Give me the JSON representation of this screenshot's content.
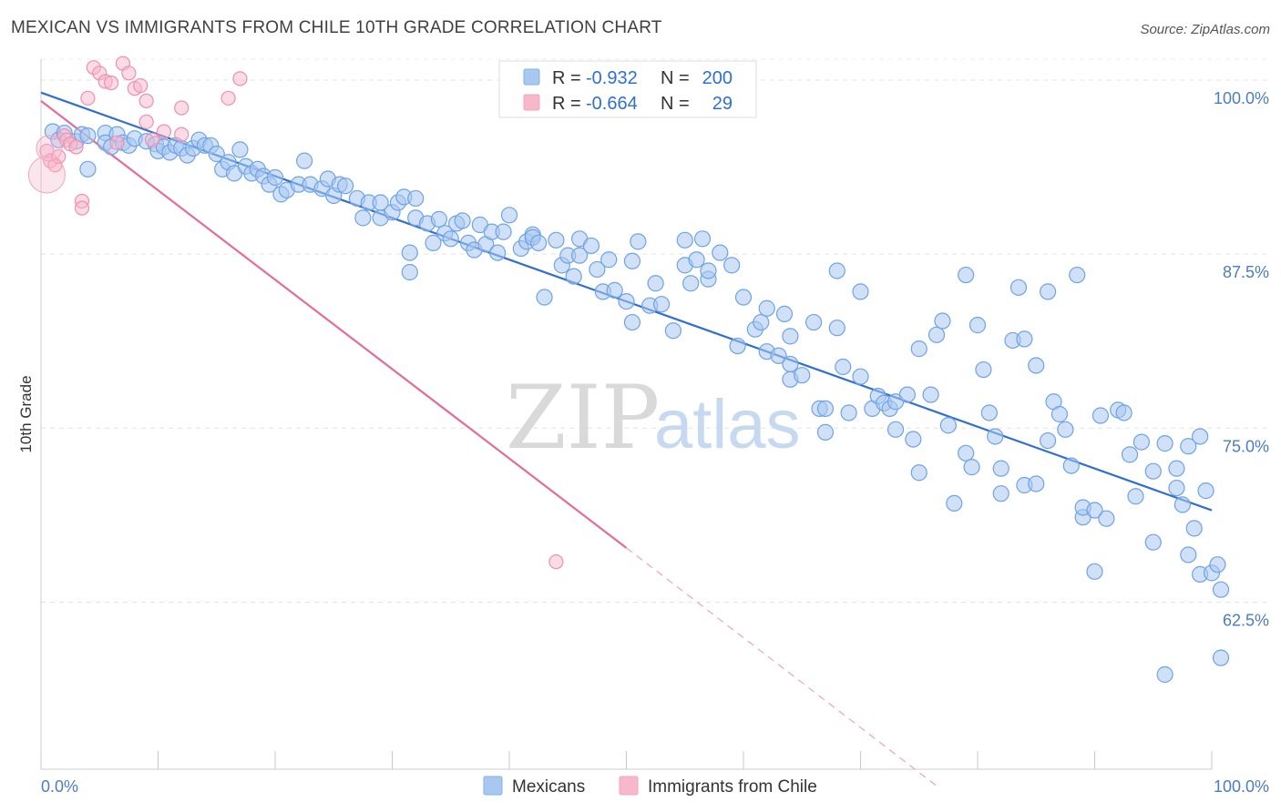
{
  "header": {
    "title": "MEXICAN VS IMMIGRANTS FROM CHILE 10TH GRADE CORRELATION CHART",
    "source": "Source: ZipAtlas.com"
  },
  "legend": {
    "rows": [
      {
        "r_label": "R =",
        "r_value": "-0.932",
        "n_label": "N =",
        "n_value": "200",
        "color": "#a9c8f0"
      },
      {
        "r_label": "R =",
        "r_value": "-0.664",
        "n_label": "N =",
        "n_value": "29",
        "color": "#f7b8cb"
      }
    ]
  },
  "watermark": {
    "zip": "ZIP",
    "atlas": "atlas"
  },
  "chart_data": {
    "type": "scatter",
    "title": "MEXICAN VS IMMIGRANTS FROM CHILE 10TH GRADE CORRELATION CHART",
    "xlabel": "",
    "ylabel": "10th Grade",
    "xlim": [
      0,
      100
    ],
    "ylim": [
      50.5,
      101.5
    ],
    "x_tick_labels": [
      "0.0%",
      "100.0%"
    ],
    "y_ticks": [
      62.5,
      75.0,
      87.5,
      100.0
    ],
    "y_tick_labels": [
      "62.5%",
      "75.0%",
      "87.5%",
      "100.0%"
    ],
    "grid": true,
    "legend_position": "top-center",
    "series": [
      {
        "name": "Mexicans",
        "color": "#7fb0ea",
        "trend": {
          "x": [
            0,
            100
          ],
          "y": [
            99.1,
            69.1
          ],
          "color": "#2f6fd0"
        },
        "points": [
          [
            1,
            96.3
          ],
          [
            1.5,
            95.7
          ],
          [
            2,
            96.2
          ],
          [
            3,
            95.6
          ],
          [
            3.5,
            96.1
          ],
          [
            4,
            96
          ],
          [
            4,
            93.6
          ],
          [
            5.5,
            96.2
          ],
          [
            5.5,
            95.5
          ],
          [
            6,
            95.2
          ],
          [
            6.5,
            96.1
          ],
          [
            7,
            95.5
          ],
          [
            7.5,
            95.3
          ],
          [
            8,
            95.8
          ],
          [
            9,
            95.6
          ],
          [
            9.8,
            95.4
          ],
          [
            10,
            94.9
          ],
          [
            10.5,
            95.2
          ],
          [
            11,
            94.8
          ],
          [
            11.5,
            95.3
          ],
          [
            12,
            95.1
          ],
          [
            12.5,
            94.6
          ],
          [
            13,
            95.1
          ],
          [
            13.5,
            95.7
          ],
          [
            14,
            95.3
          ],
          [
            14.5,
            95.3
          ],
          [
            15,
            94.7
          ],
          [
            15.5,
            93.6
          ],
          [
            16,
            94.1
          ],
          [
            16.5,
            93.3
          ],
          [
            17,
            95
          ],
          [
            17.5,
            93.8
          ],
          [
            18,
            93.3
          ],
          [
            18.5,
            93.6
          ],
          [
            19,
            93.1
          ],
          [
            19.5,
            92.5
          ],
          [
            20,
            93
          ],
          [
            20.5,
            91.8
          ],
          [
            21,
            92.1
          ],
          [
            22,
            92.5
          ],
          [
            22.5,
            94.2
          ],
          [
            23,
            92.5
          ],
          [
            24,
            92.2
          ],
          [
            24.5,
            92.9
          ],
          [
            25,
            91.7
          ],
          [
            25.5,
            92.5
          ],
          [
            26,
            92.4
          ],
          [
            27,
            91.5
          ],
          [
            27.5,
            90.1
          ],
          [
            28,
            91.2
          ],
          [
            29,
            91.2
          ],
          [
            29,
            90.1
          ],
          [
            30,
            90.5
          ],
          [
            30.5,
            91.2
          ],
          [
            31,
            91.6
          ],
          [
            31.5,
            87.6
          ],
          [
            31.5,
            86.2
          ],
          [
            32,
            90.1
          ],
          [
            32,
            91.5
          ],
          [
            33,
            89.7
          ],
          [
            33.5,
            88.3
          ],
          [
            34,
            90
          ],
          [
            34.5,
            89
          ],
          [
            35,
            88.6
          ],
          [
            35.5,
            89.7
          ],
          [
            36,
            89.9
          ],
          [
            36.5,
            88.3
          ],
          [
            37,
            87.8
          ],
          [
            37.5,
            89.6
          ],
          [
            38,
            88.2
          ],
          [
            38.5,
            89.1
          ],
          [
            39,
            87.6
          ],
          [
            39.5,
            89.1
          ],
          [
            40,
            90.3
          ],
          [
            41,
            87.9
          ],
          [
            41.5,
            88.4
          ],
          [
            42,
            88.9
          ],
          [
            42,
            88.7
          ],
          [
            42.5,
            88.3
          ],
          [
            43,
            84.4
          ],
          [
            44,
            88.5
          ],
          [
            44.5,
            86.7
          ],
          [
            45,
            87.4
          ],
          [
            45.5,
            85.9
          ],
          [
            46,
            87.4
          ],
          [
            46,
            88.6
          ],
          [
            47,
            88.1
          ],
          [
            47.5,
            86.4
          ],
          [
            48,
            84.8
          ],
          [
            48.5,
            87.1
          ],
          [
            49,
            84.9
          ],
          [
            50,
            84.1
          ],
          [
            50.5,
            82.6
          ],
          [
            50.5,
            87
          ],
          [
            51,
            88.4
          ],
          [
            52,
            83.8
          ],
          [
            52.5,
            85.4
          ],
          [
            53,
            83.9
          ],
          [
            54,
            82
          ],
          [
            55,
            88.5
          ],
          [
            55,
            86.7
          ],
          [
            55.5,
            85.4
          ],
          [
            56,
            87.1
          ],
          [
            56.5,
            88.6
          ],
          [
            57,
            85.7
          ],
          [
            57,
            86.3
          ],
          [
            58,
            87.6
          ],
          [
            59,
            86.7
          ],
          [
            59.5,
            80.9
          ],
          [
            60,
            84.4
          ],
          [
            61,
            82.1
          ],
          [
            61.5,
            82.6
          ],
          [
            62,
            83.6
          ],
          [
            62,
            80.5
          ],
          [
            63,
            80.2
          ],
          [
            63.5,
            83.2
          ],
          [
            64,
            81.6
          ],
          [
            64,
            79.6
          ],
          [
            64,
            78.5
          ],
          [
            65,
            78.8
          ],
          [
            66,
            82.6
          ],
          [
            66.5,
            76.4
          ],
          [
            67,
            76.4
          ],
          [
            67,
            74.7
          ],
          [
            68,
            82.2
          ],
          [
            68,
            86.3
          ],
          [
            68.5,
            79.4
          ],
          [
            69,
            76.1
          ],
          [
            70,
            84.8
          ],
          [
            70,
            78.7
          ],
          [
            71,
            76.4
          ],
          [
            71.5,
            77.3
          ],
          [
            72,
            76.8
          ],
          [
            72.5,
            76.4
          ],
          [
            73,
            76.9
          ],
          [
            73,
            74.9
          ],
          [
            74,
            77.4
          ],
          [
            74.5,
            74.2
          ],
          [
            75,
            80.7
          ],
          [
            75,
            71.8
          ],
          [
            76,
            77.4
          ],
          [
            76.5,
            81.7
          ],
          [
            77,
            82.7
          ],
          [
            77.5,
            75.2
          ],
          [
            78,
            69.6
          ],
          [
            79,
            86
          ],
          [
            79,
            73.2
          ],
          [
            79.5,
            72.2
          ],
          [
            80,
            82.4
          ],
          [
            80.5,
            79.2
          ],
          [
            81,
            76.1
          ],
          [
            81.5,
            74.4
          ],
          [
            82,
            70.3
          ],
          [
            82,
            72.1
          ],
          [
            83,
            81.3
          ],
          [
            83.5,
            85.1
          ],
          [
            84,
            70.9
          ],
          [
            84,
            81.4
          ],
          [
            85,
            71
          ],
          [
            85,
            79.5
          ],
          [
            86,
            84.8
          ],
          [
            86,
            74.1
          ],
          [
            86.5,
            76.9
          ],
          [
            87,
            76
          ],
          [
            87.5,
            74.9
          ],
          [
            88,
            72.3
          ],
          [
            88.5,
            86
          ],
          [
            89,
            68.6
          ],
          [
            89,
            69.3
          ],
          [
            90,
            69.1
          ],
          [
            90,
            64.7
          ],
          [
            90.5,
            75.9
          ],
          [
            91,
            68.5
          ],
          [
            92,
            76.3
          ],
          [
            92.5,
            76.1
          ],
          [
            93,
            73.1
          ],
          [
            93.5,
            70.1
          ],
          [
            94,
            74
          ],
          [
            95,
            71.9
          ],
          [
            95,
            66.8
          ],
          [
            96,
            73.9
          ],
          [
            96,
            57.3
          ],
          [
            97,
            72.1
          ],
          [
            97,
            70.7
          ],
          [
            97.5,
            69.5
          ],
          [
            98,
            65.9
          ],
          [
            98,
            73.7
          ],
          [
            98.5,
            67.8
          ],
          [
            99,
            64.5
          ],
          [
            99,
            74.4
          ],
          [
            99.5,
            70.5
          ],
          [
            100,
            64.6
          ],
          [
            100.5,
            65.2
          ],
          [
            101,
            58.5
          ],
          [
            101.5,
            63.4
          ]
        ]
      },
      {
        "name": "Immigrants from Chile",
        "color": "#f4a3ba",
        "trend": {
          "x": [
            0,
            50
          ],
          "y": [
            98.5,
            66.4
          ],
          "color": "#e56b98",
          "dashed_extension_to": [
            76.5,
            49.3
          ]
        },
        "points": [
          [
            0.5,
            94.9
          ],
          [
            0.8,
            94.2
          ],
          [
            1.2,
            93.9
          ],
          [
            1.5,
            94.5
          ],
          [
            2,
            96
          ],
          [
            2.2,
            95.7
          ],
          [
            2.5,
            95.4
          ],
          [
            3,
            95.2
          ],
          [
            3.5,
            91.3
          ],
          [
            3.5,
            90.8
          ],
          [
            4,
            98.7
          ],
          [
            4.5,
            100.9
          ],
          [
            5,
            100.5
          ],
          [
            5.5,
            99.9
          ],
          [
            6,
            99.8
          ],
          [
            6.5,
            95.5
          ],
          [
            7,
            101.2
          ],
          [
            7.5,
            100.5
          ],
          [
            8,
            99.4
          ],
          [
            8.5,
            99.6
          ],
          [
            9,
            98.5
          ],
          [
            9,
            97
          ],
          [
            9.5,
            95.7
          ],
          [
            10.5,
            96.3
          ],
          [
            12,
            98
          ],
          [
            12,
            96.1
          ],
          [
            16,
            98.7
          ],
          [
            17,
            100.1
          ],
          [
            44,
            65.4
          ]
        ],
        "large_points": [
          [
            0.5,
            93.2
          ],
          [
            0.7,
            95.1
          ]
        ]
      }
    ]
  },
  "bottom_legend": {
    "items": [
      {
        "label": "Mexicans",
        "color": "#a9c8f0"
      },
      {
        "label": "Immigrants from Chile",
        "color": "#f7b8cb"
      }
    ]
  }
}
